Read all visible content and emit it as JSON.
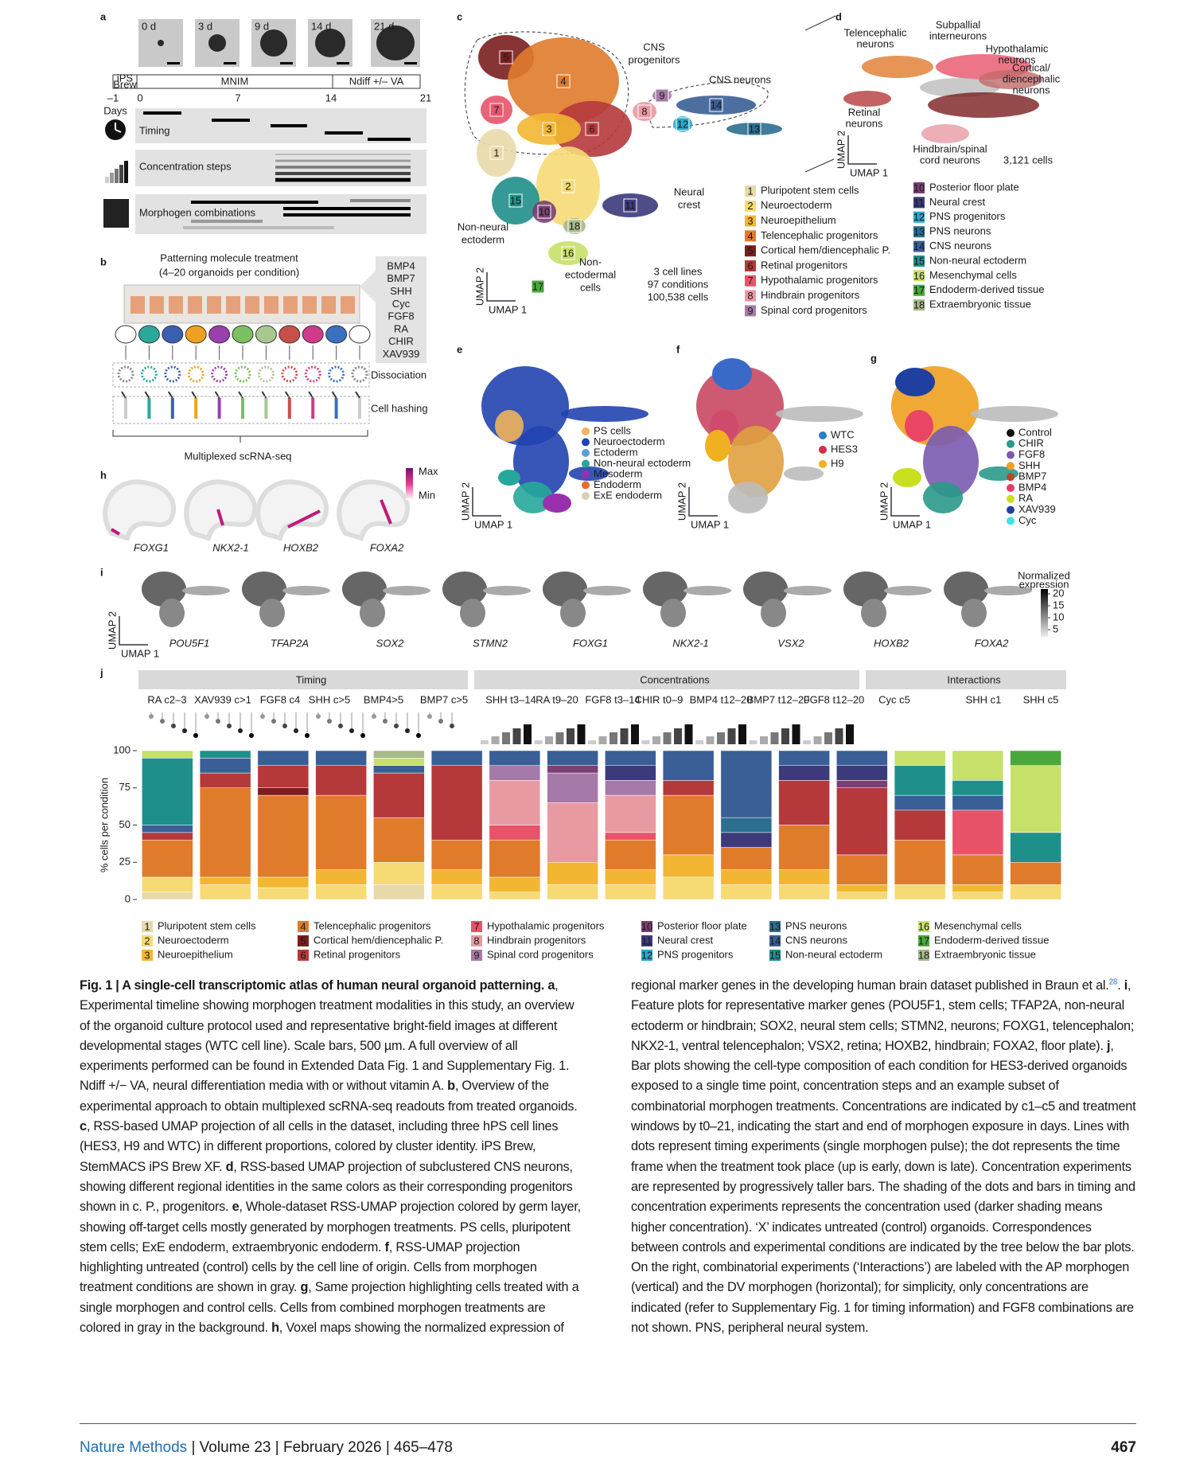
{
  "chart_data": {
    "type": "stacked_bar",
    "ylabel": "% cells per condition",
    "ylim": [
      0,
      100
    ],
    "yticks": [
      0,
      25,
      50,
      75,
      100
    ],
    "categories": [
      null,
      null,
      null,
      null,
      null,
      null,
      null,
      null,
      null,
      null,
      null,
      null,
      null,
      null,
      null,
      null
    ],
    "series": [
      {
        "number": "1",
        "name": "Pluripotent stem cells",
        "color": "#e8d9a8",
        "values": [
          5,
          0,
          0,
          0,
          10,
          0,
          0,
          0,
          0,
          0,
          0,
          0,
          0,
          0,
          0,
          0
        ]
      },
      {
        "number": "2",
        "name": "Neuroectoderm",
        "color": "#f6da74",
        "values": [
          10,
          10,
          8,
          10,
          15,
          10,
          5,
          10,
          10,
          15,
          10,
          10,
          5,
          10,
          5,
          10
        ]
      },
      {
        "number": "3",
        "name": "Neuroepithelium",
        "color": "#f2b632",
        "values": [
          0,
          5,
          7,
          10,
          0,
          10,
          10,
          15,
          10,
          15,
          10,
          10,
          5,
          0,
          5,
          0
        ]
      },
      {
        "number": "4",
        "name": "Telencephalic progenitors",
        "color": "#e07b2c",
        "values": [
          25,
          60,
          55,
          50,
          30,
          20,
          25,
          0,
          20,
          40,
          15,
          30,
          20,
          30,
          20,
          15
        ]
      },
      {
        "number": "5",
        "name": "Cortical hem/diencephalic P.",
        "color": "#7a1e1e",
        "values": [
          0,
          0,
          5,
          0,
          0,
          0,
          0,
          0,
          0,
          0,
          0,
          0,
          0,
          0,
          0,
          0
        ]
      },
      {
        "number": "6",
        "name": "Retinal progenitors",
        "color": "#b5393b",
        "values": [
          5,
          10,
          15,
          20,
          30,
          50,
          0,
          0,
          0,
          10,
          0,
          30,
          45,
          20,
          0,
          0
        ]
      },
      {
        "number": "7",
        "name": "Hypothalamic progenitors",
        "color": "#e8536a",
        "values": [
          0,
          0,
          0,
          0,
          0,
          0,
          10,
          0,
          5,
          0,
          0,
          0,
          0,
          0,
          30,
          0
        ]
      },
      {
        "number": "8",
        "name": "Hindbrain progenitors",
        "color": "#e89aa3",
        "values": [
          0,
          0,
          0,
          0,
          0,
          0,
          30,
          40,
          25,
          0,
          0,
          0,
          0,
          0,
          0,
          0
        ]
      },
      {
        "number": "9",
        "name": "Spinal cord progenitors",
        "color": "#a67aa8",
        "values": [
          0,
          0,
          0,
          0,
          0,
          0,
          10,
          20,
          10,
          0,
          0,
          0,
          0,
          0,
          0,
          0
        ]
      },
      {
        "number": "10",
        "name": "Posterior floor plate",
        "color": "#7a3f73",
        "values": [
          0,
          0,
          0,
          0,
          0,
          0,
          0,
          5,
          0,
          0,
          0,
          0,
          5,
          0,
          0,
          0
        ]
      },
      {
        "number": "11",
        "name": "Neural crest",
        "color": "#3c3a7a",
        "values": [
          0,
          0,
          0,
          0,
          0,
          0,
          0,
          0,
          10,
          0,
          10,
          10,
          10,
          0,
          0,
          0
        ]
      },
      {
        "number": "12",
        "name": "PNS progenitors",
        "color": "#2aa6c9",
        "values": [
          0,
          0,
          0,
          0,
          0,
          0,
          0,
          0,
          0,
          0,
          0,
          0,
          0,
          0,
          0,
          0
        ]
      },
      {
        "number": "13",
        "name": "PNS neurons",
        "color": "#2b6f8f",
        "values": [
          0,
          0,
          0,
          0,
          0,
          0,
          0,
          0,
          0,
          0,
          10,
          0,
          0,
          0,
          0,
          0
        ]
      },
      {
        "number": "14",
        "name": "CNS neurons",
        "color": "#3a5f96",
        "values": [
          5,
          10,
          10,
          10,
          5,
          10,
          10,
          10,
          10,
          20,
          45,
          10,
          10,
          10,
          10,
          0
        ]
      },
      {
        "number": "15",
        "name": "Non-neural ectoderm",
        "color": "#1f8f8a",
        "values": [
          45,
          5,
          0,
          0,
          0,
          0,
          0,
          0,
          0,
          0,
          0,
          0,
          0,
          20,
          10,
          20
        ]
      },
      {
        "number": "16",
        "name": "Mesenchymal cells",
        "color": "#c6e06a",
        "values": [
          5,
          0,
          0,
          0,
          5,
          0,
          0,
          0,
          0,
          0,
          0,
          0,
          0,
          10,
          20,
          45
        ]
      },
      {
        "number": "17",
        "name": "Endoderm-derived tissue",
        "color": "#4aa83a",
        "values": [
          0,
          0,
          0,
          0,
          0,
          0,
          0,
          0,
          0,
          0,
          0,
          0,
          0,
          0,
          0,
          10
        ]
      },
      {
        "number": "18",
        "name": "Extraembryonic tissue",
        "color": "#a7b88a",
        "values": [
          0,
          0,
          0,
          0,
          5,
          0,
          0,
          0,
          0,
          0,
          0,
          0,
          0,
          0,
          0,
          0
        ]
      }
    ]
  },
  "figure": {
    "letters": [
      "a",
      "b",
      "c",
      "d",
      "e",
      "f",
      "g",
      "h",
      "i",
      "j"
    ],
    "a": {
      "days": [
        "0 d",
        "3 d",
        "9 d",
        "14 d",
        "21 d"
      ],
      "media": [
        "iPS",
        "Brew",
        "MNIM",
        "Ndiff +/– VA"
      ],
      "ticks": [
        "–1",
        "0",
        "7",
        "14",
        "21"
      ],
      "days_label": "Days",
      "rows": [
        "Timing",
        "Concentration steps",
        "Morphogen combinations"
      ]
    },
    "b": {
      "title": "Patterning molecule treatment",
      "subtitle": "(4–20 organoids per condition)",
      "molecules": [
        "BMP4",
        "BMP7",
        "SHH",
        "Cyc",
        "FGF8",
        "RA",
        "CHIR",
        "XAV939"
      ],
      "steps": [
        "Dissociation",
        "Cell hashing"
      ],
      "output": "Multiplexed scRNA-seq"
    },
    "c": {
      "annotations": [
        [
          "CNS",
          "progenitors"
        ],
        [
          "CNS neurons"
        ],
        [
          "Neural",
          "crest"
        ],
        [
          "Non-neural",
          "ectoderm"
        ],
        [
          "Non-",
          "ectodermal",
          "cells"
        ]
      ],
      "stats": [
        "3 cell lines",
        "97 conditions",
        "100,538 cells"
      ],
      "umap": [
        "UMAP 1",
        "UMAP 2"
      ]
    },
    "d": {
      "labels": [
        [
          "Telencephalic",
          "neurons"
        ],
        [
          "Subpallial",
          "interneurons"
        ],
        [
          "Hypothalamic",
          "neurons"
        ],
        [
          "Cortical/",
          "diencephalic",
          "neurons"
        ],
        [
          "Retinal",
          "neurons"
        ],
        [
          "Hindbrain/spinal",
          "cord neurons"
        ]
      ],
      "cells": "3,121 cells"
    },
    "e": {
      "legend": [
        {
          "name": "PS cells",
          "color": "#f0b45a"
        },
        {
          "name": "Neuroectoderm",
          "color": "#2144b0"
        },
        {
          "name": "Ectoderm",
          "color": "#5aa0d8"
        },
        {
          "name": "Non-neural ectoderm",
          "color": "#26a79a"
        },
        {
          "name": "Mesoderm",
          "color": "#9a2fae"
        },
        {
          "name": "Endoderm",
          "color": "#e0702c"
        },
        {
          "name": "ExE endoderm",
          "color": "#d9cfb8"
        }
      ]
    },
    "f": {
      "legend": [
        {
          "name": "WTC",
          "color": "#2a7fc0"
        },
        {
          "name": "HES3",
          "color": "#d22d4a"
        },
        {
          "name": "H9",
          "color": "#f0b020"
        }
      ]
    },
    "g": {
      "legend": [
        {
          "name": "Control",
          "color": "#111111"
        },
        {
          "name": "CHIR",
          "color": "#2a9a8a"
        },
        {
          "name": "FGF8",
          "color": "#7a5bb0"
        },
        {
          "name": "SHH",
          "color": "#f0a020"
        },
        {
          "name": "BMP7",
          "color": "#b04a2a"
        },
        {
          "name": "BMP4",
          "color": "#e83a6a"
        },
        {
          "name": "RA",
          "color": "#c8e020"
        },
        {
          "name": "XAV939",
          "color": "#2040a0"
        },
        {
          "name": "Cyc",
          "color": "#40e0e8"
        }
      ]
    },
    "h": {
      "max": "Max",
      "min": "Min",
      "genes": [
        "FOXG1",
        "NKX2-1",
        "HOXB2",
        "FOXA2"
      ]
    },
    "i": {
      "genes": [
        "POU5F1",
        "TFAP2A",
        "SOX2",
        "STMN2",
        "FOXG1",
        "NKX2-1",
        "VSX2",
        "HOXB2",
        "FOXA2"
      ],
      "scale_title": [
        "Normalized",
        "expression"
      ],
      "scale_ticks": [
        20,
        15,
        10,
        5
      ],
      "scale_lim": [
        2,
        22
      ]
    },
    "j": {
      "groups": [
        "Timing",
        "Concentrations",
        "Interactions"
      ],
      "subgroups": [
        "RA c2–3",
        "XAV939 c>1",
        "FGF8 c4",
        "SHH c>5",
        "BMP4>5",
        "BMP7 c>5",
        "SHH t3–14",
        "RA t9–20",
        "FGF8 t3–14",
        "CHIR t0–9",
        "BMP4 t12–20",
        "BMP7 t12–20",
        "FGF8 t12–20",
        "Cyc c5",
        "SHH c1",
        "SHH c5"
      ]
    }
  },
  "caption": [
    {
      "lead": "Fig. 1 | A single-cell transcriptomic atlas of human neural organoid patterning."
    },
    {
      "lead": "a",
      "text": ", Experimental timeline showing morphogen treatment modalities in this study, an overview of the organoid culture protocol used and representative bright-field images at different developmental stages (WTC cell line). Scale bars, 500 µm. A full overview of all experiments performed can be found in Extended Data Fig. 1 and Supplementary Fig. 1. Ndiff +/− VA, neural differentiation media with or without vitamin A."
    },
    {
      "lead": "b",
      "text": ", Overview of the experimental approach to obtain multiplexed scRNA-seq readouts from treated organoids."
    },
    {
      "lead": "c",
      "text": ", RSS-based UMAP projection of all cells in the dataset, including three hPS cell lines (HES3, H9 and WTC) in different proportions, colored by cluster identity. iPS Brew, StemMACS iPS Brew XF."
    },
    {
      "lead": "d",
      "text": ", RSS-based UMAP projection of subclustered CNS neurons, showing different regional identities in the same colors as their corresponding progenitors shown in c. P., progenitors."
    },
    {
      "lead": "e",
      "text": ", Whole-dataset RSS-UMAP projection colored by germ layer, showing off-target cells mostly generated by morphogen treatments. PS cells, pluripotent stem cells; ExE endoderm, extraembryonic endoderm."
    },
    {
      "lead": "f",
      "text": ", RSS-UMAP projection highlighting untreated (control) cells by the cell line of origin. Cells from morphogen treatment conditions are shown in gray."
    },
    {
      "lead": "g",
      "text": ", Same projection highlighting cells treated with a single morphogen and control cells. Cells from combined morphogen treatments are colored in gray in the background."
    },
    {
      "lead": "h",
      "text": ", Voxel maps showing the normalized expression of regional marker genes in the developing human brain dataset published in Braun et al.",
      "ref": "28",
      "after": "."
    },
    {
      "lead": "i",
      "text": ", Feature plots for representative marker genes (POU5F1, stem cells; TFAP2A, non-neural ectoderm or hindbrain; SOX2, neural stem cells; STMN2, neurons; FOXG1, telencephalon; NKX2-1, ventral telencephalon; VSX2, retina; HOXB2, hindbrain; FOXA2, floor plate)."
    },
    {
      "lead": "j",
      "text": ", Bar plots showing the cell-type composition of each condition for HES3-derived organoids exposed to a single time point, concentration steps and an example subset of combinatorial morphogen treatments. Concentrations are indicated by c1–c5 and treatment windows by t0–21, indicating the start and end of morphogen exposure in days. Lines with dots represent timing experiments (single morphogen pulse); the dot represents the time frame when the treatment took place (up is early, down is late). Concentration experiments are represented by progressively taller bars. The shading of the dots and bars in timing and concentration experiments represents the concentration used (darker shading means higher concentration). ‘X’ indicates untreated (control) organoids. Correspondences between controls and experimental conditions are indicated by the tree below the bar plots. On the right, combinatorial experiments (‘Interactions’) are labeled with the AP morphogen (vertical) and the DV morphogen (horizontal); for simplicity, only concentrations are indicated (refer to Supplementary Fig. 1 for timing information) and FGF8 combinations are not shown. PNS, peripheral neural system."
    }
  ],
  "footer": {
    "journal": "Nature Methods",
    "issue": "| Volume 23 | February 2026 | 465–478",
    "page": "467"
  }
}
